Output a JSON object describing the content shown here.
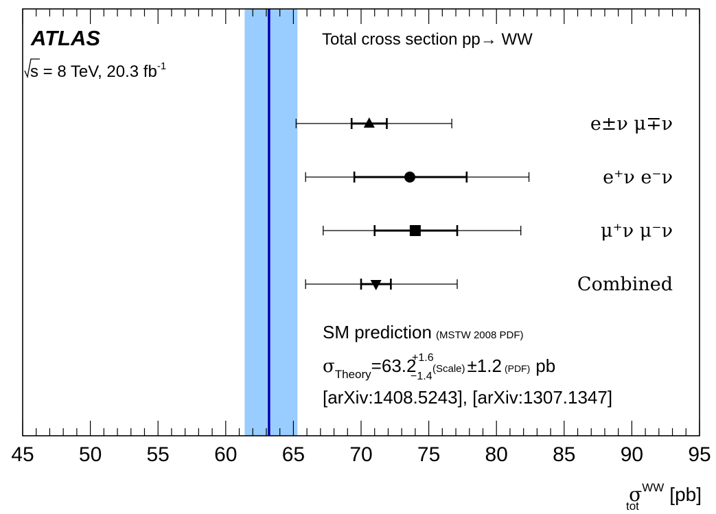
{
  "chart_data": {
    "type": "scatter",
    "orientation": "horizontal",
    "experiment": "ATLAS",
    "sqrt_s_label": "s = 8 TeV, 20.3 fb",
    "lumi_exponent": "-1",
    "title": "Total cross section pp→ WW",
    "xlabel": "[pb]",
    "xlabel_symbol": "σ",
    "xlabel_superscript": "WW",
    "xlabel_subscript": "tot",
    "xlim": [
      45,
      95
    ],
    "x_ticks": [
      "45",
      "50",
      "55",
      "60",
      "65",
      "70",
      "75",
      "80",
      "85",
      "90",
      "95"
    ],
    "grid": false,
    "theory_band": {
      "central": 63.2,
      "low": 61.4,
      "high": 65.3,
      "band_color": "#99ccff",
      "line_color": "#0000aa"
    },
    "theory_text": {
      "line1_main": "SM prediction",
      "line1_small": "(MSTW 2008 PDF)",
      "sigma": "σ",
      "sub": "Theory",
      "value": "=63.2",
      "sup_err": "+1.6",
      "sub_err": "−1.4",
      "scale": "(Scale)",
      "pdf_err": "±1.2",
      "pdf": "(PDF)",
      "unit": "pb",
      "refs": "[arXiv:1408.5243], [arXiv:1307.1347]"
    },
    "measurements": [
      {
        "label": "e±ν μ∓ν",
        "value": 70.6,
        "stat": [
          69.3,
          71.9
        ],
        "total": [
          65.2,
          76.7
        ],
        "marker": "triangle-up"
      },
      {
        "label": "e⁺ν e⁻ν",
        "value": 73.6,
        "stat": [
          69.5,
          77.8
        ],
        "total": [
          65.9,
          82.4
        ],
        "marker": "circle"
      },
      {
        "label": "μ⁺ν μ⁻ν",
        "value": 74.0,
        "stat": [
          71.0,
          77.1
        ],
        "total": [
          67.2,
          81.8
        ],
        "marker": "square"
      },
      {
        "label": "Combined",
        "value": 71.1,
        "stat": [
          70.0,
          72.2
        ],
        "total": [
          65.9,
          77.1
        ],
        "marker": "triangle-down"
      }
    ]
  }
}
